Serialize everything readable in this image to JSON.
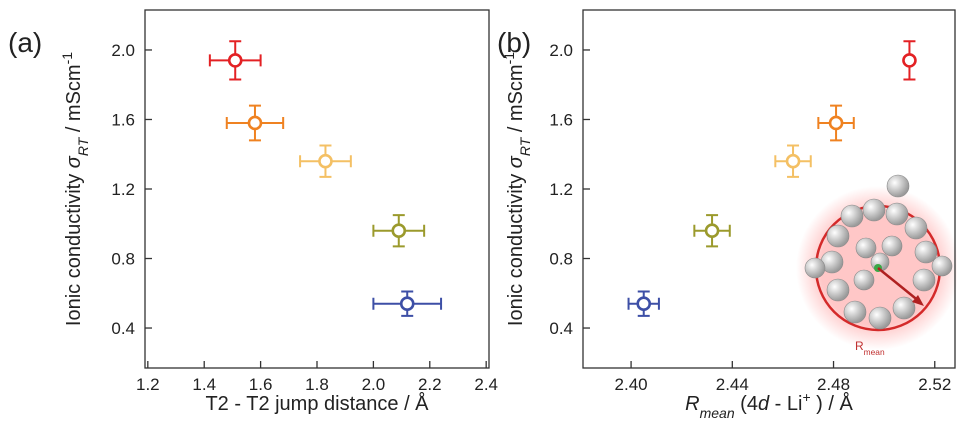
{
  "chart_data": [
    {
      "type": "scatter",
      "panel_label": "(a)",
      "y_label": [
        {
          "text": "Ionic conductivity ",
          "style": "normal"
        },
        {
          "text": "σ",
          "style": "italic"
        },
        {
          "text": "RT",
          "style": "sub-italic"
        },
        {
          "text": " / mScm",
          "style": "normal"
        },
        {
          "text": "-1",
          "style": "sup"
        }
      ],
      "x_label": [
        {
          "text": "T2 - T2  jump distance  / Å",
          "style": "normal"
        }
      ],
      "xlim": [
        1.19,
        2.41
      ],
      "ylim": [
        0.17,
        2.23
      ],
      "xticks": [
        1.2,
        1.4,
        1.6,
        1.8,
        {
          "value": 2,
          "label": "2.0"
        },
        2.2,
        2.4
      ],
      "yticks": [
        0.4,
        0.8,
        1.2,
        1.6,
        {
          "value": 2,
          "label": "2.0"
        }
      ],
      "series": [
        {
          "x": [
            1.51,
            1.58,
            1.83,
            2.09,
            2.12
          ],
          "values": [
            1.94,
            1.58,
            1.36,
            0.96,
            0.54
          ],
          "x_err": [
            0.09,
            0.1,
            0.09,
            0.09,
            0.12
          ],
          "y_err": [
            0.11,
            0.1,
            0.09,
            0.09,
            0.07
          ],
          "colors": [
            "#e32124",
            "#ef8221",
            "#f4c064",
            "#9b9a2c",
            "#3d4fa6"
          ]
        }
      ]
    },
    {
      "type": "scatter",
      "panel_label": "(b)",
      "y_label": [
        {
          "text": "Ionic conductivity ",
          "style": "normal"
        },
        {
          "text": "σ",
          "style": "italic"
        },
        {
          "text": "RT",
          "style": "sub-italic"
        },
        {
          "text": " / mScm",
          "style": "normal"
        },
        {
          "text": "-1",
          "style": "sup"
        }
      ],
      "x_label": [
        {
          "text": "R",
          "style": "italic"
        },
        {
          "text": "mean",
          "style": "sub-italic"
        },
        {
          "text": " (4",
          "style": "normal"
        },
        {
          "text": "d",
          "style": "italic"
        },
        {
          "text": " - Li",
          "style": "normal"
        },
        {
          "text": "+",
          "style": "sup"
        },
        {
          "text": " ) / Å",
          "style": "normal"
        }
      ],
      "inset_label": [
        {
          "text": "R",
          "style": "normal"
        },
        {
          "text": "mean",
          "style": "sub"
        }
      ],
      "xlim": [
        2.381,
        2.528
      ],
      "ylim": [
        0.17,
        2.23
      ],
      "xticks": [
        {
          "value": 2.4,
          "label": "2.40"
        },
        2.44,
        2.48,
        2.52
      ],
      "yticks": [
        0.4,
        0.8,
        1.2,
        1.6,
        {
          "value": 2,
          "label": "2.0"
        }
      ],
      "series": [
        {
          "x": [
            2.405,
            2.432,
            2.464,
            2.481,
            2.51
          ],
          "values": [
            0.54,
            0.96,
            1.36,
            1.58,
            1.94
          ],
          "x_err": [
            0.006,
            0.007,
            0.007,
            0.007,
            0.0
          ],
          "y_err": [
            0.07,
            0.09,
            0.09,
            0.1,
            0.11
          ],
          "colors": [
            "#3d4fa6",
            "#9b9a2c",
            "#f4c064",
            "#ef8221",
            "#e32124"
          ]
        }
      ]
    }
  ]
}
